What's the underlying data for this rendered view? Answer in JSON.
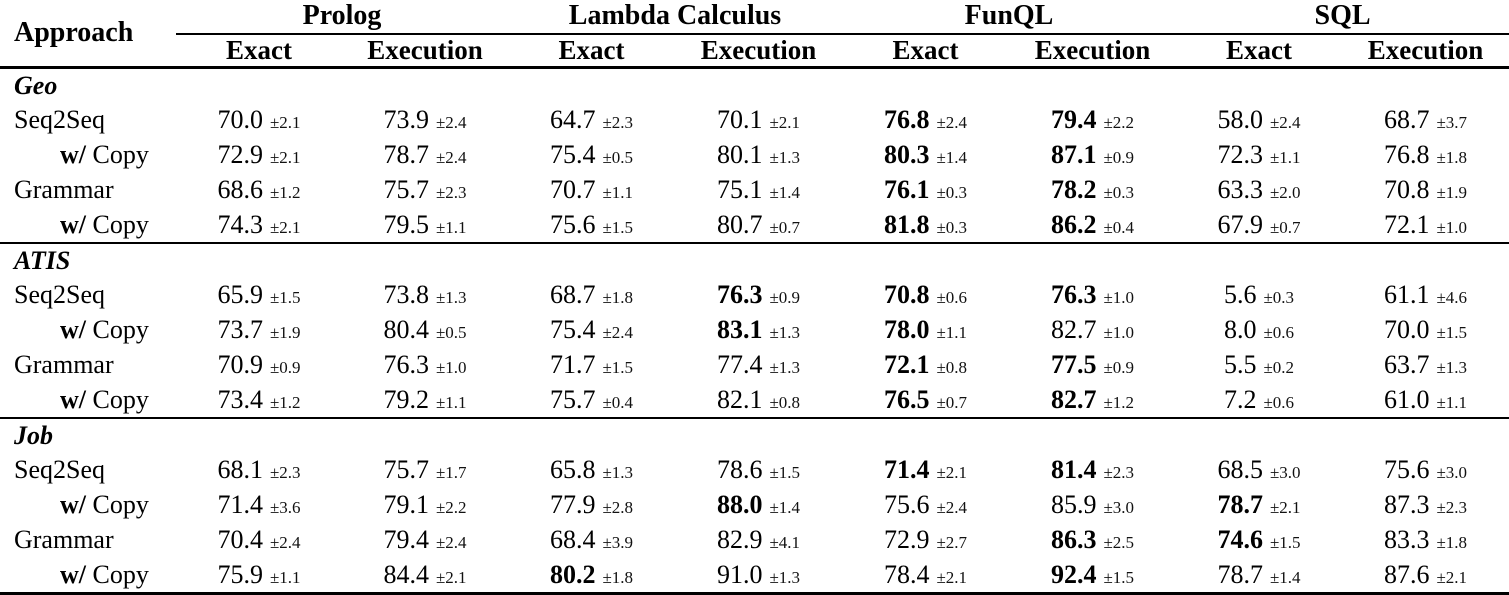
{
  "header": {
    "approach": "Approach",
    "groups": [
      "Prolog",
      "Lambda Calculus",
      "FunQL",
      "SQL"
    ],
    "subheaders": [
      "Exact",
      "Execution"
    ]
  },
  "sections": [
    {
      "label": "Geo",
      "rows": [
        {
          "prefix": "",
          "approach": "Seq2Seq",
          "cells": [
            {
              "v": "70.0",
              "e": "±2.1",
              "b": false
            },
            {
              "v": "73.9",
              "e": "±2.4",
              "b": false
            },
            {
              "v": "64.7",
              "e": "±2.3",
              "b": false
            },
            {
              "v": "70.1",
              "e": "±2.1",
              "b": false
            },
            {
              "v": "76.8",
              "e": "±2.4",
              "b": true
            },
            {
              "v": "79.4",
              "e": "±2.2",
              "b": true
            },
            {
              "v": "58.0",
              "e": "±2.4",
              "b": false
            },
            {
              "v": "68.7",
              "e": "±3.7",
              "b": false
            }
          ]
        },
        {
          "prefix": "w/",
          "approach": "Copy",
          "cells": [
            {
              "v": "72.9",
              "e": "±2.1",
              "b": false
            },
            {
              "v": "78.7",
              "e": "±2.4",
              "b": false
            },
            {
              "v": "75.4",
              "e": "±0.5",
              "b": false
            },
            {
              "v": "80.1",
              "e": "±1.3",
              "b": false
            },
            {
              "v": "80.3",
              "e": "±1.4",
              "b": true
            },
            {
              "v": "87.1",
              "e": "±0.9",
              "b": true
            },
            {
              "v": "72.3",
              "e": "±1.1",
              "b": false
            },
            {
              "v": "76.8",
              "e": "±1.8",
              "b": false
            }
          ]
        },
        {
          "prefix": "",
          "approach": "Grammar",
          "cells": [
            {
              "v": "68.6",
              "e": "±1.2",
              "b": false
            },
            {
              "v": "75.7",
              "e": "±2.3",
              "b": false
            },
            {
              "v": "70.7",
              "e": "±1.1",
              "b": false
            },
            {
              "v": "75.1",
              "e": "±1.4",
              "b": false
            },
            {
              "v": "76.1",
              "e": "±0.3",
              "b": true
            },
            {
              "v": "78.2",
              "e": "±0.3",
              "b": true
            },
            {
              "v": "63.3",
              "e": "±2.0",
              "b": false
            },
            {
              "v": "70.8",
              "e": "±1.9",
              "b": false
            }
          ]
        },
        {
          "prefix": "w/",
          "approach": "Copy",
          "cells": [
            {
              "v": "74.3",
              "e": "±2.1",
              "b": false
            },
            {
              "v": "79.5",
              "e": "±1.1",
              "b": false
            },
            {
              "v": "75.6",
              "e": "±1.5",
              "b": false
            },
            {
              "v": "80.7",
              "e": "±0.7",
              "b": false
            },
            {
              "v": "81.8",
              "e": "±0.3",
              "b": true
            },
            {
              "v": "86.2",
              "e": "±0.4",
              "b": true
            },
            {
              "v": "67.9",
              "e": "±0.7",
              "b": false
            },
            {
              "v": "72.1",
              "e": "±1.0",
              "b": false
            }
          ]
        }
      ]
    },
    {
      "label": "ATIS",
      "rows": [
        {
          "prefix": "",
          "approach": "Seq2Seq",
          "cells": [
            {
              "v": "65.9",
              "e": "±1.5",
              "b": false
            },
            {
              "v": "73.8",
              "e": "±1.3",
              "b": false
            },
            {
              "v": "68.7",
              "e": "±1.8",
              "b": false
            },
            {
              "v": "76.3",
              "e": "±0.9",
              "b": true
            },
            {
              "v": "70.8",
              "e": "±0.6",
              "b": true
            },
            {
              "v": "76.3",
              "e": "±1.0",
              "b": true
            },
            {
              "v": "5.6",
              "e": "±0.3",
              "b": false
            },
            {
              "v": "61.1",
              "e": "±4.6",
              "b": false
            }
          ]
        },
        {
          "prefix": "w/",
          "approach": "Copy",
          "cells": [
            {
              "v": "73.7",
              "e": "±1.9",
              "b": false
            },
            {
              "v": "80.4",
              "e": "±0.5",
              "b": false
            },
            {
              "v": "75.4",
              "e": "±2.4",
              "b": false
            },
            {
              "v": "83.1",
              "e": "±1.3",
              "b": true
            },
            {
              "v": "78.0",
              "e": "±1.1",
              "b": true
            },
            {
              "v": "82.7",
              "e": "±1.0",
              "b": false
            },
            {
              "v": "8.0",
              "e": "±0.6",
              "b": false
            },
            {
              "v": "70.0",
              "e": "±1.5",
              "b": false
            }
          ]
        },
        {
          "prefix": "",
          "approach": "Grammar",
          "cells": [
            {
              "v": "70.9",
              "e": "±0.9",
              "b": false
            },
            {
              "v": "76.3",
              "e": "±1.0",
              "b": false
            },
            {
              "v": "71.7",
              "e": "±1.5",
              "b": false
            },
            {
              "v": "77.4",
              "e": "±1.3",
              "b": false
            },
            {
              "v": "72.1",
              "e": "±0.8",
              "b": true
            },
            {
              "v": "77.5",
              "e": "±0.9",
              "b": true
            },
            {
              "v": "5.5",
              "e": "±0.2",
              "b": false
            },
            {
              "v": "63.7",
              "e": "±1.3",
              "b": false
            }
          ]
        },
        {
          "prefix": "w/",
          "approach": "Copy",
          "cells": [
            {
              "v": "73.4",
              "e": "±1.2",
              "b": false
            },
            {
              "v": "79.2",
              "e": "±1.1",
              "b": false
            },
            {
              "v": "75.7",
              "e": "±0.4",
              "b": false
            },
            {
              "v": "82.1",
              "e": "±0.8",
              "b": false
            },
            {
              "v": "76.5",
              "e": "±0.7",
              "b": true
            },
            {
              "v": "82.7",
              "e": "±1.2",
              "b": true
            },
            {
              "v": "7.2",
              "e": "±0.6",
              "b": false
            },
            {
              "v": "61.0",
              "e": "±1.1",
              "b": false
            }
          ]
        }
      ]
    },
    {
      "label": "Job",
      "rows": [
        {
          "prefix": "",
          "approach": "Seq2Seq",
          "cells": [
            {
              "v": "68.1",
              "e": "±2.3",
              "b": false
            },
            {
              "v": "75.7",
              "e": "±1.7",
              "b": false
            },
            {
              "v": "65.8",
              "e": "±1.3",
              "b": false
            },
            {
              "v": "78.6",
              "e": "±1.5",
              "b": false
            },
            {
              "v": "71.4",
              "e": "±2.1",
              "b": true
            },
            {
              "v": "81.4",
              "e": "±2.3",
              "b": true
            },
            {
              "v": "68.5",
              "e": "±3.0",
              "b": false
            },
            {
              "v": "75.6",
              "e": "±3.0",
              "b": false
            }
          ]
        },
        {
          "prefix": "w/",
          "approach": "Copy",
          "cells": [
            {
              "v": "71.4",
              "e": "±3.6",
              "b": false
            },
            {
              "v": "79.1",
              "e": "±2.2",
              "b": false
            },
            {
              "v": "77.9",
              "e": "±2.8",
              "b": false
            },
            {
              "v": "88.0",
              "e": "±1.4",
              "b": true
            },
            {
              "v": "75.6",
              "e": "±2.4",
              "b": false
            },
            {
              "v": "85.9",
              "e": "±3.0",
              "b": false
            },
            {
              "v": "78.7",
              "e": "±2.1",
              "b": true
            },
            {
              "v": "87.3",
              "e": "±2.3",
              "b": false
            }
          ]
        },
        {
          "prefix": "",
          "approach": "Grammar",
          "cells": [
            {
              "v": "70.4",
              "e": "±2.4",
              "b": false
            },
            {
              "v": "79.4",
              "e": "±2.4",
              "b": false
            },
            {
              "v": "68.4",
              "e": "±3.9",
              "b": false
            },
            {
              "v": "82.9",
              "e": "±4.1",
              "b": false
            },
            {
              "v": "72.9",
              "e": "±2.7",
              "b": false
            },
            {
              "v": "86.3",
              "e": "±2.5",
              "b": true
            },
            {
              "v": "74.6",
              "e": "±1.5",
              "b": true
            },
            {
              "v": "83.3",
              "e": "±1.8",
              "b": false
            }
          ]
        },
        {
          "prefix": "w/",
          "approach": "Copy",
          "cells": [
            {
              "v": "75.9",
              "e": "±1.1",
              "b": false
            },
            {
              "v": "84.4",
              "e": "±2.1",
              "b": false
            },
            {
              "v": "80.2",
              "e": "±1.8",
              "b": true
            },
            {
              "v": "91.0",
              "e": "±1.3",
              "b": false
            },
            {
              "v": "78.4",
              "e": "±2.1",
              "b": false
            },
            {
              "v": "92.4",
              "e": "±1.5",
              "b": true
            },
            {
              "v": "78.7",
              "e": "±1.4",
              "b": false
            },
            {
              "v": "87.6",
              "e": "±2.1",
              "b": false
            }
          ]
        }
      ]
    }
  ]
}
